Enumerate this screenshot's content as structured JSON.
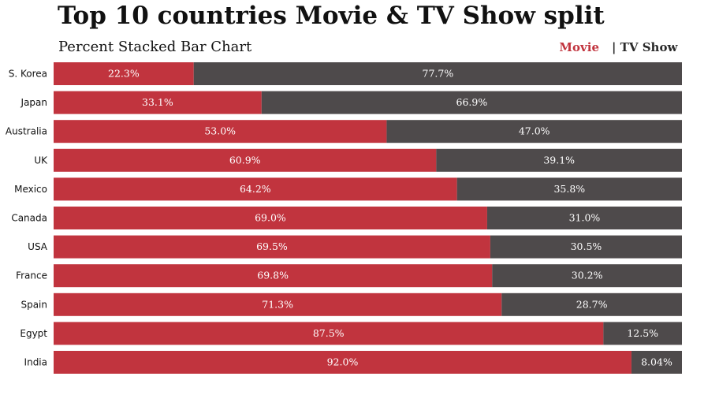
{
  "colors": {
    "movie": "#c1343e",
    "tv": "#4e4a4b"
  },
  "chart_data": {
    "type": "bar",
    "orientation": "horizontal",
    "stacked": "percent",
    "title": "Top 10 countries Movie & TV Show split",
    "subtitle": "Percent Stacked Bar Chart",
    "legend": {
      "placement": "top-right",
      "movie_label": "Movie",
      "tv_label": "| TV Show"
    },
    "categories": [
      "S. Korea",
      "Japan",
      "Australia",
      "UK",
      "Mexico",
      "Canada",
      "USA",
      "France",
      "Spain",
      "Egypt",
      "India"
    ],
    "series": [
      {
        "name": "Movie",
        "values": [
          22.3,
          33.1,
          53.0,
          60.9,
          64.2,
          69.0,
          69.5,
          69.8,
          71.3,
          87.5,
          92.0
        ],
        "labels": [
          "22.3%",
          "33.1%",
          "53.0%",
          "60.9%",
          "64.2%",
          "69.0%",
          "69.5%",
          "69.8%",
          "71.3%",
          "87.5%",
          "92.0%"
        ]
      },
      {
        "name": "TV Show",
        "values": [
          77.7,
          66.9,
          47.0,
          39.1,
          35.8,
          31.0,
          30.5,
          30.2,
          28.7,
          12.5,
          8.04
        ],
        "labels": [
          "77.7%",
          "66.9%",
          "47.0%",
          "39.1%",
          "35.8%",
          "31.0%",
          "30.5%",
          "30.2%",
          "28.7%",
          "12.5%",
          "8.04%"
        ]
      }
    ],
    "xlim": [
      0,
      100
    ],
    "grid": false
  }
}
